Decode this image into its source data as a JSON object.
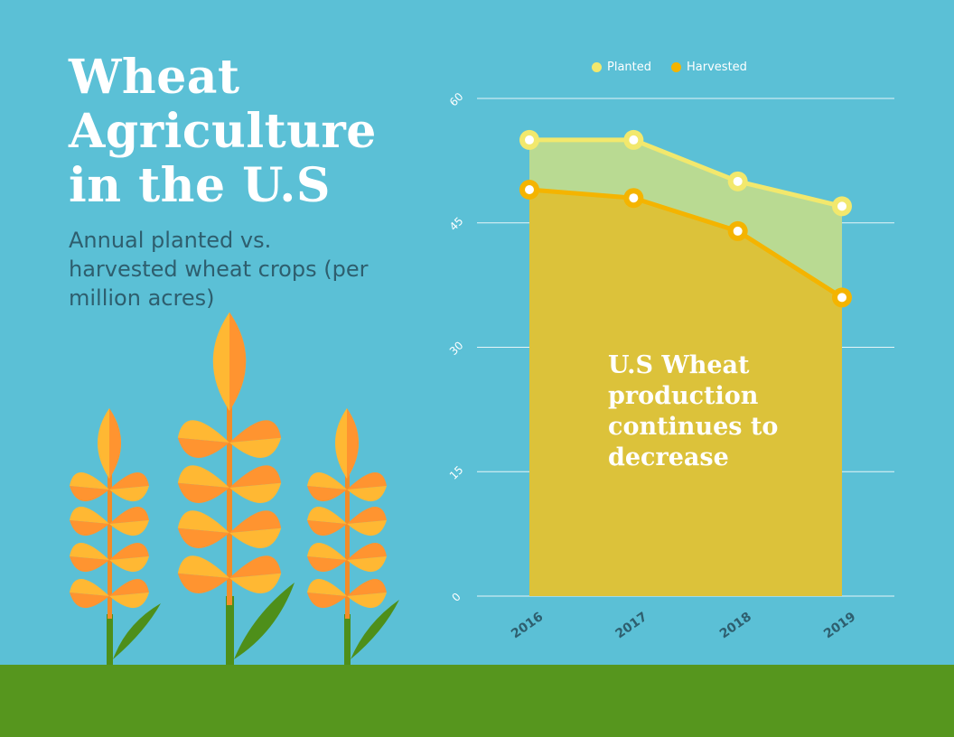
{
  "title": "Wheat Agriculture in the U.S",
  "subtitle": "Annual planted vs. harvested wheat crops (per million acres)",
  "annotation": "U.S Wheat production continues to decrease",
  "colors": {
    "background": "#5BC0D6",
    "ground": "#56961E",
    "planted": "#F2E86D",
    "harvested": "#F4B400",
    "planted_area": "#B9DA92",
    "harvested_area": "#DCC23A",
    "axis_text": "#2E5E6E"
  },
  "chart_data": {
    "type": "area",
    "categories": [
      "2016",
      "2017",
      "2018",
      "2019"
    ],
    "series": [
      {
        "name": "Planted",
        "values": [
          55,
          55,
          50,
          47
        ]
      },
      {
        "name": "Harvested",
        "values": [
          49,
          48,
          44,
          36
        ]
      }
    ],
    "yticks": [
      "0",
      "15",
      "30",
      "45",
      "60"
    ],
    "ylim": [
      0,
      60
    ],
    "grid": true,
    "legend_position": "top"
  }
}
